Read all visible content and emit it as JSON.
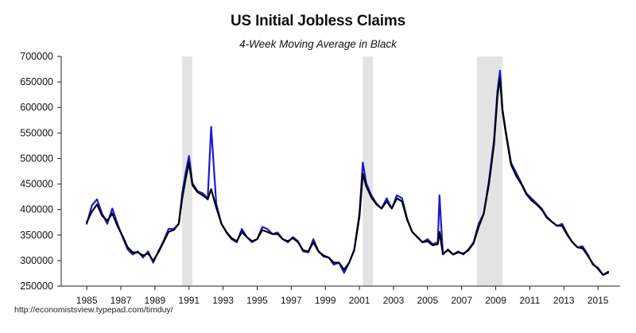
{
  "chart_data": {
    "type": "line",
    "title": "US Initial Jobless Claims",
    "subtitle": "4-Week Moving Average in Black",
    "source": "http://economistsview.typepad.com/timduy/",
    "xlabel": "",
    "ylabel": "",
    "xlim": [
      1983.5,
      2016.3
    ],
    "ylim": [
      250000,
      700000
    ],
    "grid": false,
    "legend": "none",
    "yticks": [
      250000,
      300000,
      350000,
      400000,
      450000,
      500000,
      550000,
      600000,
      650000,
      700000
    ],
    "ytick_labels": [
      "250000",
      "300000",
      "350000",
      "400000",
      "450000",
      "500000",
      "550000",
      "600000",
      "650000",
      "700000"
    ],
    "xticks": [
      1985,
      1987,
      1989,
      1991,
      1993,
      1995,
      1997,
      1999,
      2001,
      2003,
      2005,
      2007,
      2009,
      2011,
      2013,
      2015
    ],
    "xtick_labels": [
      "1985",
      "1987",
      "1989",
      "1991",
      "1993",
      "1995",
      "1997",
      "1999",
      "2001",
      "2003",
      "2005",
      "2007",
      "2009",
      "2011",
      "2013",
      "2015"
    ],
    "recessions": [
      {
        "start": 1990.6,
        "end": 1991.2
      },
      {
        "start": 2001.2,
        "end": 2001.8
      },
      {
        "start": 2007.9,
        "end": 2009.4
      }
    ],
    "colors": {
      "weekly": "#1a1ad6",
      "moving_average": "#000000",
      "recession": "#e3e3e3",
      "axis": "#222222"
    },
    "series": [
      {
        "name": "",
        "color": "#1a1ad6",
        "x": [
          1985.0,
          1985.3,
          1985.6,
          1985.9,
          1986.2,
          1986.5,
          1986.8,
          1987.1,
          1987.4,
          1987.7,
          1988.0,
          1988.3,
          1988.6,
          1988.9,
          1989.2,
          1989.5,
          1989.8,
          1990.1,
          1990.4,
          1990.6,
          1990.8,
          1991.0,
          1991.2,
          1991.5,
          1991.8,
          1992.1,
          1992.3,
          1992.6,
          1992.9,
          1993.2,
          1993.5,
          1993.8,
          1994.1,
          1994.4,
          1994.7,
          1995.0,
          1995.3,
          1995.6,
          1995.9,
          1996.2,
          1996.5,
          1996.8,
          1997.1,
          1997.4,
          1997.7,
          1998.0,
          1998.3,
          1998.6,
          1998.9,
          1999.2,
          1999.5,
          1999.8,
          2000.1,
          2000.4,
          2000.7,
          2001.0,
          2001.2,
          2001.4,
          2001.7,
          2002.0,
          2002.3,
          2002.6,
          2002.9,
          2003.2,
          2003.5,
          2003.8,
          2004.1,
          2004.4,
          2004.7,
          2005.0,
          2005.3,
          2005.6,
          2005.7,
          2005.9,
          2006.2,
          2006.5,
          2006.8,
          2007.1,
          2007.4,
          2007.7,
          2008.0,
          2008.3,
          2008.6,
          2008.9,
          2009.1,
          2009.25,
          2009.4,
          2009.6,
          2009.9,
          2010.2,
          2010.5,
          2010.8,
          2011.1,
          2011.4,
          2011.7,
          2012.0,
          2012.3,
          2012.6,
          2012.9,
          2013.2,
          2013.5,
          2013.8,
          2014.1,
          2014.4,
          2014.7,
          2015.0,
          2015.3,
          2015.6
        ],
        "y": [
          372000,
          408000,
          420000,
          392000,
          372000,
          402000,
          372000,
          346000,
          322000,
          312000,
          318000,
          306000,
          318000,
          296000,
          318000,
          338000,
          362000,
          362000,
          372000,
          432000,
          472000,
          505000,
          452000,
          436000,
          432000,
          422000,
          562000,
          412000,
          372000,
          355000,
          342000,
          336000,
          362000,
          346000,
          336000,
          342000,
          366000,
          362000,
          352000,
          355000,
          342000,
          336000,
          346000,
          338000,
          318000,
          316000,
          342000,
          318000,
          308000,
          306000,
          292000,
          296000,
          276000,
          296000,
          322000,
          392000,
          492000,
          452000,
          428000,
          412000,
          402000,
          422000,
          402000,
          428000,
          422000,
          382000,
          356000,
          346000,
          336000,
          342000,
          332000,
          336000,
          428000,
          312000,
          322000,
          312000,
          318000,
          312000,
          322000,
          336000,
          372000,
          392000,
          456000,
          536000,
          632000,
          672000,
          596000,
          552000,
          492000,
          472000,
          452000,
          432000,
          422000,
          412000,
          402000,
          386000,
          376000,
          368000,
          372000,
          352000,
          336000,
          326000,
          328000,
          312000,
          292000,
          286000,
          272000,
          276000
        ]
      },
      {
        "name": "",
        "color": "#000000",
        "x": [
          1985.0,
          1985.3,
          1985.6,
          1985.9,
          1986.2,
          1986.5,
          1986.8,
          1987.1,
          1987.4,
          1987.7,
          1988.0,
          1988.3,
          1988.6,
          1988.9,
          1989.2,
          1989.5,
          1989.8,
          1990.1,
          1990.4,
          1990.6,
          1990.8,
          1991.0,
          1991.2,
          1991.5,
          1991.8,
          1992.1,
          1992.3,
          1992.6,
          1992.9,
          1993.2,
          1993.5,
          1993.8,
          1994.1,
          1994.4,
          1994.7,
          1995.0,
          1995.3,
          1995.6,
          1995.9,
          1996.2,
          1996.5,
          1996.8,
          1997.1,
          1997.4,
          1997.7,
          1998.0,
          1998.3,
          1998.6,
          1998.9,
          1999.2,
          1999.5,
          1999.8,
          2000.1,
          2000.4,
          2000.7,
          2001.0,
          2001.2,
          2001.4,
          2001.7,
          2002.0,
          2002.3,
          2002.6,
          2002.9,
          2003.2,
          2003.5,
          2003.8,
          2004.1,
          2004.4,
          2004.7,
          2005.0,
          2005.3,
          2005.6,
          2005.7,
          2005.9,
          2006.2,
          2006.5,
          2006.8,
          2007.1,
          2007.4,
          2007.7,
          2008.0,
          2008.3,
          2008.6,
          2008.9,
          2009.1,
          2009.25,
          2009.4,
          2009.6,
          2009.9,
          2010.2,
          2010.5,
          2010.8,
          2011.1,
          2011.4,
          2011.7,
          2012.0,
          2012.3,
          2012.6,
          2012.9,
          2013.2,
          2013.5,
          2013.8,
          2014.1,
          2014.4,
          2014.7,
          2015.0,
          2015.3,
          2015.6
        ],
        "y": [
          375000,
          396000,
          410000,
          388000,
          378000,
          392000,
          368000,
          348000,
          326000,
          316000,
          316000,
          310000,
          314000,
          300000,
          316000,
          336000,
          356000,
          360000,
          372000,
          422000,
          460000,
          492000,
          448000,
          434000,
          428000,
          420000,
          440000,
          404000,
          372000,
          356000,
          344000,
          338000,
          356000,
          346000,
          338000,
          342000,
          360000,
          356000,
          352000,
          352000,
          342000,
          338000,
          344000,
          336000,
          320000,
          318000,
          336000,
          318000,
          310000,
          306000,
          296000,
          296000,
          282000,
          296000,
          320000,
          386000,
          470000,
          446000,
          424000,
          410000,
          402000,
          416000,
          402000,
          422000,
          416000,
          380000,
          356000,
          346000,
          336000,
          338000,
          330000,
          332000,
          356000,
          314000,
          320000,
          312000,
          316000,
          314000,
          320000,
          334000,
          366000,
          392000,
          450000,
          528000,
          622000,
          658000,
          592000,
          548000,
          488000,
          466000,
          450000,
          430000,
          418000,
          410000,
          400000,
          384000,
          376000,
          368000,
          368000,
          350000,
          336000,
          326000,
          324000,
          310000,
          294000,
          284000,
          272000,
          278000
        ]
      }
    ]
  }
}
